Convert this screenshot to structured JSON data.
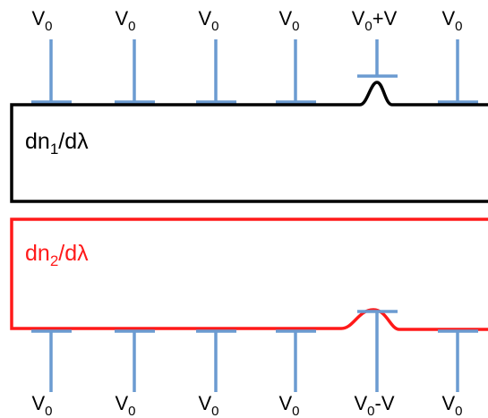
{
  "top_electrodes": [
    {
      "base": "V",
      "sub": "0",
      "suffix": ""
    },
    {
      "base": "V",
      "sub": "0",
      "suffix": ""
    },
    {
      "base": "V",
      "sub": "0",
      "suffix": ""
    },
    {
      "base": "V",
      "sub": "0",
      "suffix": ""
    },
    {
      "base": "V",
      "sub": "0",
      "suffix": "+V"
    },
    {
      "base": "V",
      "sub": "0",
      "suffix": ""
    }
  ],
  "bottom_electrodes": [
    {
      "base": "V",
      "sub": "0",
      "suffix": ""
    },
    {
      "base": "V",
      "sub": "0",
      "suffix": ""
    },
    {
      "base": "V",
      "sub": "0",
      "suffix": ""
    },
    {
      "base": "V",
      "sub": "0",
      "suffix": ""
    },
    {
      "base": "V",
      "sub": "0",
      "suffix": "-V"
    },
    {
      "base": "V",
      "sub": "0",
      "suffix": ""
    }
  ],
  "waveguide_1": {
    "label_base": "dn",
    "label_sub": "1",
    "label_tail": "/dλ",
    "color": "#000000"
  },
  "waveguide_2": {
    "label_base": "dn",
    "label_sub": "2",
    "label_tail": "/dλ",
    "color": "#ff1a1a"
  },
  "electrode_color": "#6b9bd1"
}
